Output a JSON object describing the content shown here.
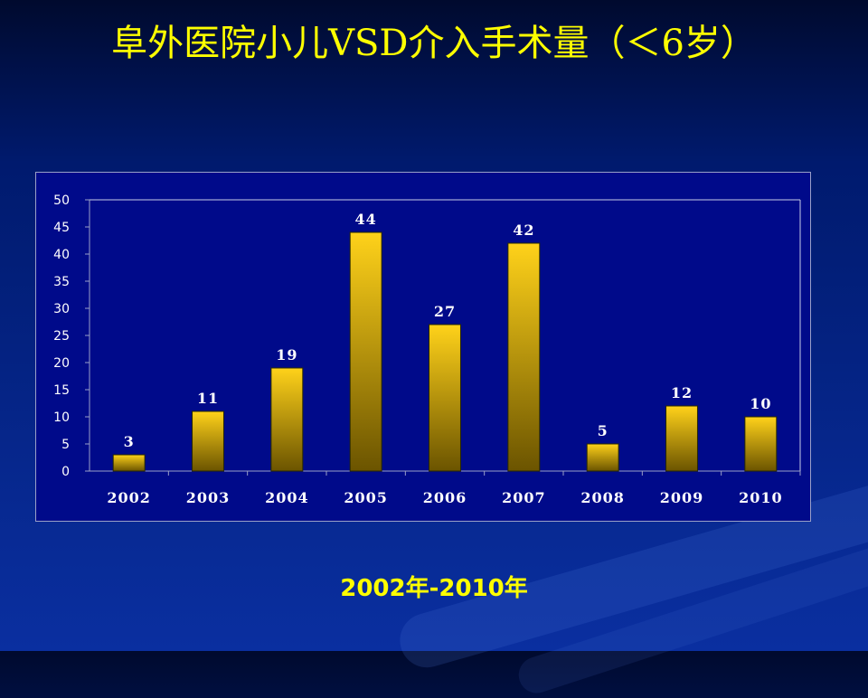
{
  "slide": {
    "title": "阜外医院小儿VSD介入手术量（＜6岁）",
    "subtitle": "2002年-2010年"
  },
  "colors": {
    "title": "#ffff00",
    "plot_background": "#000a8a",
    "bar_top": "#ffd21a",
    "bar_bottom": "#6b5400"
  },
  "chart_data": {
    "type": "bar",
    "categories": [
      "2002",
      "2003",
      "2004",
      "2005",
      "2006",
      "2007",
      "2008",
      "2009",
      "2010"
    ],
    "values": [
      3,
      11,
      19,
      44,
      27,
      42,
      5,
      12,
      10
    ],
    "title": "",
    "xlabel": "",
    "ylabel": "",
    "ylim": [
      0,
      50
    ],
    "yticks": [
      0,
      5,
      10,
      15,
      20,
      25,
      30,
      35,
      40,
      45,
      50
    ],
    "data_labels": true,
    "grid": false,
    "legend": "none"
  }
}
